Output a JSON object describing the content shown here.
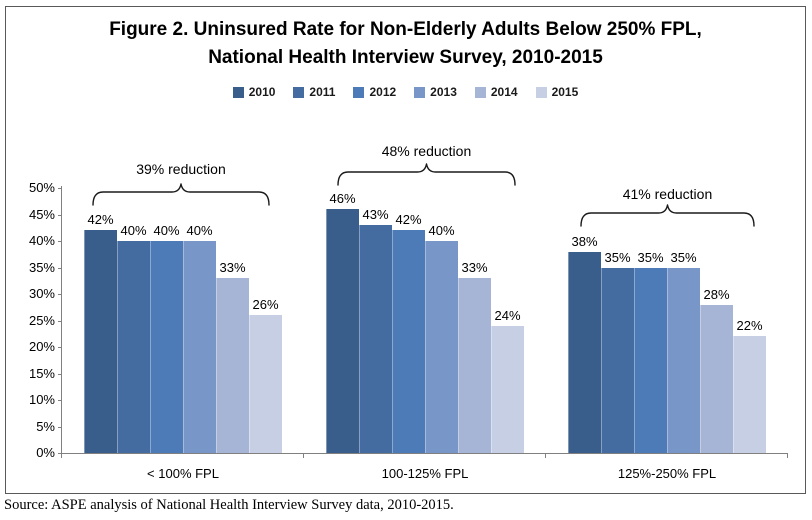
{
  "chart_data": {
    "type": "bar",
    "title_line1": "Figure 2. Uninsured Rate for Non-Elderly Adults Below 250% FPL,",
    "title_line2": "National Health Interview Survey, 2010-2015",
    "categories": [
      "< 100% FPL",
      "100-125% FPL",
      "125%-250% FPL"
    ],
    "series": [
      {
        "name": "2010",
        "color": "#3A5E8C",
        "values": [
          42,
          46,
          38
        ]
      },
      {
        "name": "2011",
        "color": "#456CA1",
        "values": [
          40,
          43,
          35
        ]
      },
      {
        "name": "2012",
        "color": "#4C7BB8",
        "values": [
          40,
          42,
          35
        ]
      },
      {
        "name": "2013",
        "color": "#7896C8",
        "values": [
          40,
          40,
          35
        ]
      },
      {
        "name": "2014",
        "color": "#A6B4D5",
        "values": [
          33,
          33,
          28
        ]
      },
      {
        "name": "2015",
        "color": "#C6CFE3",
        "values": [
          26,
          24,
          22
        ]
      }
    ],
    "value_suffix": "%",
    "annotations": [
      "39% reduction",
      "48% reduction",
      "41% reduction"
    ],
    "y_axis": {
      "min": 0,
      "max": 50,
      "step": 5,
      "tick_labels": [
        "0%",
        "5%",
        "10%",
        "15%",
        "20%",
        "25%",
        "30%",
        "35%",
        "40%",
        "45%",
        "50%"
      ]
    },
    "legend_position": "top",
    "grid": "off",
    "source": "Source: ASPE analysis of National Health Interview Survey data, 2010-2015."
  },
  "colors": {
    "axis": "#808080",
    "frame_border": "#595959",
    "bracket": "#1a1a1a"
  }
}
